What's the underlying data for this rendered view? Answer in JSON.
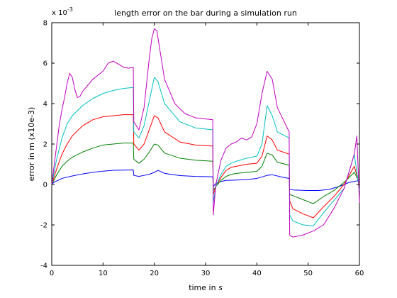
{
  "chart_data": {
    "type": "line",
    "title": "length error on the bar during a simulation run",
    "xlabel": "time in s",
    "xlabel_text": "time in ",
    "xlabel_unit": "s",
    "ylabel": "error in m (x10e-3)",
    "y_multiplier_base": "x 10",
    "y_multiplier_exp": "-3",
    "xlim": [
      0,
      60
    ],
    "ylim": [
      -4,
      8
    ],
    "xticks": [
      0,
      10,
      20,
      30,
      40,
      50,
      60
    ],
    "yticks": [
      -4,
      -2,
      0,
      2,
      4,
      6,
      8
    ],
    "grid": false,
    "legend": "none",
    "series": [
      {
        "color": "#0000ff",
        "x": [
          0,
          0.5,
          2,
          4,
          6,
          8,
          10,
          12,
          14,
          15.9,
          16,
          17,
          18,
          19,
          20,
          20.7,
          22,
          25,
          28,
          31.4,
          31.5,
          32,
          33,
          34,
          36,
          38,
          40,
          42,
          43,
          45,
          46.3,
          46.4,
          47,
          50,
          52,
          54,
          56,
          58,
          60
        ],
        "y": [
          0,
          0.12,
          0.3,
          0.42,
          0.52,
          0.6,
          0.66,
          0.7,
          0.71,
          0.72,
          0.45,
          0.4,
          0.45,
          0.5,
          0.6,
          0.7,
          0.55,
          0.44,
          0.4,
          0.38,
          -0.1,
          0.05,
          0.15,
          0.2,
          0.22,
          0.24,
          0.3,
          0.45,
          0.48,
          0.36,
          0.3,
          -0.25,
          -0.27,
          -0.3,
          -0.3,
          -0.25,
          -0.1,
          0.1,
          0.2
        ]
      },
      {
        "color": "#008000",
        "x": [
          0,
          1,
          2,
          3,
          4,
          6,
          8,
          10,
          12,
          14,
          15.9,
          16,
          17,
          18,
          19,
          20,
          20.7,
          22,
          25,
          28,
          31.4,
          31.5,
          32,
          33,
          34,
          35,
          36,
          38,
          40,
          41,
          42,
          43,
          44,
          46.3,
          46.4,
          47,
          49,
          51,
          53,
          55,
          57,
          59,
          60
        ],
        "y": [
          0,
          0.5,
          0.9,
          1.15,
          1.35,
          1.6,
          1.8,
          1.95,
          2.0,
          2.05,
          2.05,
          1.25,
          1.05,
          1.25,
          1.6,
          2.0,
          1.95,
          1.55,
          1.3,
          1.2,
          1.15,
          -0.3,
          -0.1,
          0.2,
          0.4,
          0.5,
          0.55,
          0.6,
          0.65,
          0.9,
          1.55,
          1.45,
          1.1,
          0.95,
          -0.5,
          -0.55,
          -0.75,
          -0.95,
          -0.6,
          -0.3,
          0.1,
          0.6,
          0.1
        ]
      },
      {
        "color": "#ff0000",
        "x": [
          0,
          1,
          2,
          3,
          4,
          6,
          8,
          10,
          12,
          14,
          15.9,
          16,
          17,
          18,
          19,
          20,
          20.7,
          22,
          25,
          28,
          31.4,
          31.5,
          32,
          33,
          34,
          35,
          36,
          38,
          40,
          41,
          42,
          43,
          44,
          46.3,
          46.4,
          47,
          49,
          51,
          53,
          55,
          57,
          59,
          60
        ],
        "y": [
          0,
          0.8,
          1.5,
          2.0,
          2.4,
          2.9,
          3.2,
          3.35,
          3.4,
          3.45,
          3.45,
          2.0,
          1.7,
          2.0,
          2.7,
          3.4,
          3.3,
          2.6,
          2.1,
          1.95,
          1.9,
          -0.5,
          -0.1,
          0.35,
          0.7,
          0.85,
          0.9,
          1.0,
          1.05,
          1.4,
          2.4,
          2.2,
          1.7,
          1.5,
          -0.8,
          -1.2,
          -1.45,
          -1.65,
          -1.1,
          -0.6,
          0,
          0.9,
          0
        ]
      },
      {
        "color": "#00bfbf",
        "x": [
          0,
          1,
          2,
          3,
          4,
          6,
          8,
          10,
          12,
          14,
          15.9,
          16,
          17,
          18,
          19,
          20,
          20.7,
          22,
          25,
          28,
          31.4,
          31.5,
          32,
          33,
          34,
          35,
          36,
          38,
          40,
          41,
          42,
          43,
          44,
          46.3,
          46.4,
          47,
          49,
          51,
          53,
          55,
          57,
          59,
          60
        ],
        "y": [
          0,
          1.3,
          2.3,
          3.0,
          3.4,
          3.9,
          4.25,
          4.5,
          4.65,
          4.75,
          4.8,
          2.6,
          2.3,
          2.9,
          4.1,
          5.3,
          5.1,
          4.0,
          3.1,
          2.8,
          2.7,
          -0.9,
          -0.1,
          0.5,
          0.9,
          1.05,
          1.15,
          1.3,
          1.4,
          2.0,
          3.9,
          3.4,
          2.6,
          2.3,
          -1.5,
          -1.8,
          -2.0,
          -2.05,
          -1.4,
          -0.8,
          -0.2,
          1.5,
          -0.3
        ]
      },
      {
        "color": "#bf00bf",
        "x": [
          0,
          1,
          1.5,
          2,
          2.5,
          3,
          3.5,
          4,
          4.5,
          5,
          5.5,
          6,
          8,
          10,
          11,
          12,
          13,
          14,
          15,
          15.9,
          16,
          17,
          18,
          19,
          19.5,
          20,
          20.5,
          21,
          22,
          24,
          26,
          28,
          31.4,
          31.5,
          32,
          33,
          34,
          35,
          36,
          37,
          38,
          39,
          40,
          41,
          42,
          43,
          44,
          46.3,
          46.4,
          47,
          49,
          51,
          53,
          55,
          57,
          59,
          59.5,
          60
        ],
        "y": [
          0,
          2.0,
          3.0,
          3.7,
          4.3,
          5.0,
          5.5,
          5.3,
          4.7,
          4.3,
          4.35,
          4.6,
          5.2,
          5.6,
          6.0,
          6.1,
          5.95,
          5.8,
          5.75,
          5.8,
          3.1,
          2.7,
          3.8,
          6.2,
          7.2,
          7.7,
          7.6,
          6.8,
          5.2,
          4.0,
          3.5,
          3.3,
          3.2,
          -1.5,
          0,
          1.2,
          1.8,
          2.0,
          2.1,
          2.3,
          2.2,
          2.35,
          3.0,
          4.5,
          5.6,
          5.2,
          3.8,
          2.6,
          -2.5,
          -2.6,
          -2.5,
          -2.3,
          -2.0,
          -1.2,
          -0.2,
          1.5,
          2.4,
          -0.9
        ]
      }
    ]
  }
}
